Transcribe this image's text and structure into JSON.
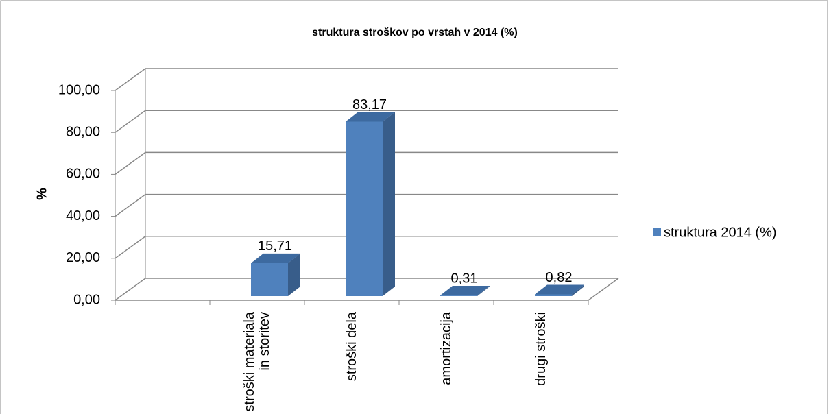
{
  "chart_data": {
    "type": "bar3d",
    "title": "struktura stroškov po vrstah  v 2014 (%)",
    "y_label": "%",
    "categories": [
      null,
      "stroški materiala in storitev",
      "stroški dela",
      "amortizacija",
      "drugi stroški"
    ],
    "series": [
      {
        "name": "struktura 2014 (%)",
        "color": "#4f81bd",
        "values": [
          null,
          15.71,
          83.17,
          0.31,
          0.82
        ],
        "value_labels": [
          null,
          "15,71",
          "83,17",
          "0,31",
          "0,82"
        ]
      }
    ],
    "ylim": [
      0,
      100
    ],
    "yticks": [
      {
        "value": 0,
        "label": "0,00"
      },
      {
        "value": 20,
        "label": "20,00"
      },
      {
        "value": 40,
        "label": "40,00"
      },
      {
        "value": 60,
        "label": "60,00"
      },
      {
        "value": 80,
        "label": "80,00"
      },
      {
        "value": 100,
        "label": "100,00"
      }
    ],
    "grid": true,
    "legend": "right"
  }
}
